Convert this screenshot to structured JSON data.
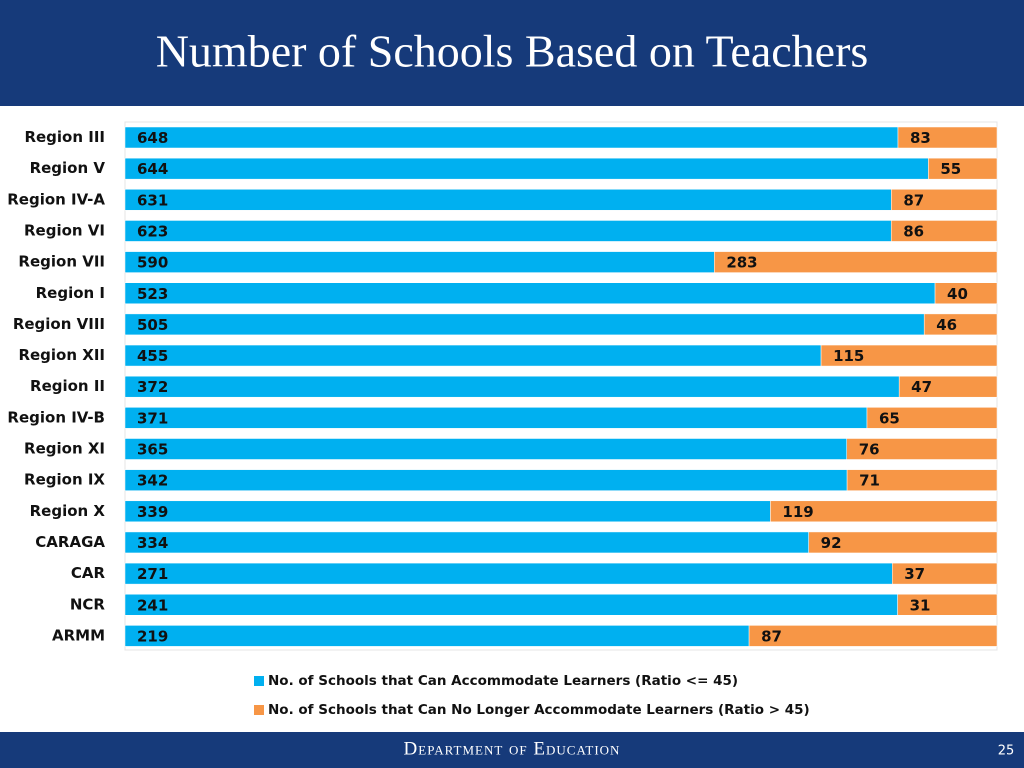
{
  "chart_data": {
    "type": "bar",
    "stack": "percent",
    "orientation": "horizontal",
    "title": "Number of Schools Based on Teachers",
    "categories": [
      "Region III",
      "Region V",
      "Region IV-A",
      "Region VI",
      "Region VII",
      "Region I",
      "Region VIII",
      "Region XII",
      "Region II",
      "Region IV-B",
      "Region XI",
      "Region IX",
      "Region X",
      "CARAGA",
      "CAR",
      "NCR",
      "ARMM"
    ],
    "series": [
      {
        "name": "No. of Schools that Can Accommodate Learners (Ratio <= 45)",
        "color": "#00b0f0",
        "values": [
          648,
          644,
          631,
          623,
          590,
          523,
          505,
          455,
          372,
          371,
          365,
          342,
          339,
          334,
          271,
          241,
          219
        ]
      },
      {
        "name": "No. of Schools that Can No Longer Accommodate Learners (Ratio > 45)",
        "color": "#f79646",
        "values": [
          83,
          55,
          87,
          86,
          283,
          40,
          46,
          115,
          47,
          65,
          76,
          71,
          119,
          92,
          37,
          31,
          87
        ]
      }
    ]
  },
  "footer": {
    "organization": "Department of Education",
    "page_number": "25"
  }
}
